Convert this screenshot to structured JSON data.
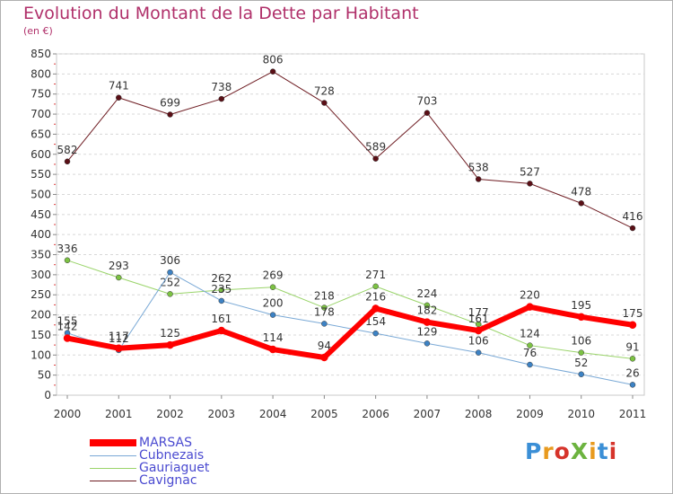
{
  "title": "Evolution du Montant de la Dette par Habitant",
  "unit_label": "(en €)",
  "logo": {
    "text": "ProXiti",
    "colors": [
      "#3b8fd6",
      "#e89a1f",
      "#d6342b",
      "#6cb33f",
      "#e89a1f",
      "#3b8fd6",
      "#d6342b"
    ]
  },
  "chart_data": {
    "type": "line",
    "title": "Evolution du Montant de la Dette par Habitant",
    "ylabel": "(en €)",
    "x": [
      "2000",
      "2001",
      "2002",
      "2003",
      "2004",
      "2005",
      "2006",
      "2007",
      "2008",
      "2009",
      "2010",
      "2011"
    ],
    "ylim": [
      0,
      850
    ],
    "yticks": [
      0,
      50,
      100,
      150,
      200,
      250,
      300,
      350,
      400,
      450,
      500,
      550,
      600,
      650,
      700,
      750,
      800,
      850
    ],
    "grid": "horizontal-dashed",
    "legend_position": "bottom-left",
    "series": [
      {
        "name": "Cavignac",
        "color": "#6e1c22",
        "dot_color": "#5a0f16",
        "width": 1,
        "values": [
          582,
          741,
          699,
          738,
          806,
          728,
          589,
          703,
          538,
          527,
          478,
          416
        ]
      },
      {
        "name": "Gauriaguet",
        "color": "#9ad46a",
        "dot_color": "#7cc243",
        "width": 1,
        "values": [
          336,
          293,
          252,
          262,
          269,
          218,
          271,
          224,
          177,
          124,
          106,
          91
        ]
      },
      {
        "name": "Cubnezais",
        "color": "#7aa9d6",
        "dot_color": "#3d82c4",
        "width": 1,
        "values": [
          155,
          112,
          306,
          235,
          200,
          178,
          154,
          129,
          106,
          76,
          52,
          26
        ]
      },
      {
        "name": "MARSAS",
        "color": "#ff0000",
        "dot_color": "#ff0000",
        "width": 6,
        "values": [
          142,
          117,
          125,
          161,
          114,
          94,
          216,
          182,
          161,
          220,
          195,
          175
        ]
      }
    ],
    "legend_order": [
      "MARSAS",
      "Cubnezais",
      "Gauriaguet",
      "Cavignac"
    ]
  }
}
